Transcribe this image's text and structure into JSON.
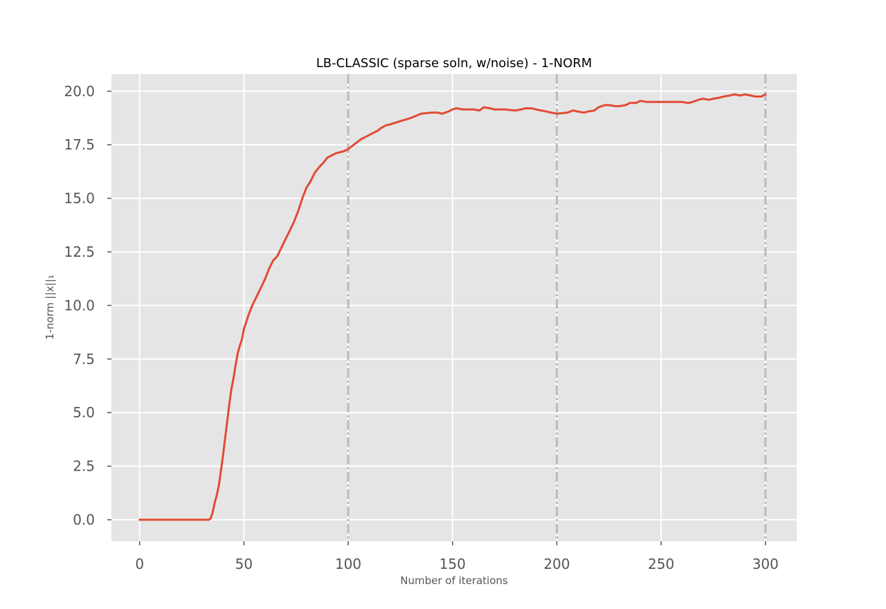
{
  "chart_data": {
    "type": "line",
    "title": "LB-CLASSIC (sparse soln, w/noise) - 1-NORM",
    "xlabel": "Number of iterations",
    "ylabel": "1-norm ||x||₁",
    "xlim": [
      -13.5,
      315
    ],
    "ylim": [
      -1,
      20.8
    ],
    "grid": true,
    "x_ticks": [
      0,
      50,
      100,
      150,
      200,
      250,
      300
    ],
    "x_tick_labels": [
      "0",
      "50",
      "100",
      "150",
      "200",
      "250",
      "300"
    ],
    "y_ticks": [
      0,
      2.5,
      5,
      7.5,
      10,
      12.5,
      15,
      17.5,
      20
    ],
    "y_tick_labels": [
      "0.0",
      "2.5",
      "5.0",
      "7.5",
      "10.0",
      "12.5",
      "15.0",
      "17.5",
      "20.0"
    ],
    "vertical_lines": [
      100,
      200,
      300
    ],
    "colors": {
      "line": "#E24A33",
      "background": "#E5E5E5",
      "grid": "#FFFFFF",
      "vline": "#BBBBBB"
    },
    "series": [
      {
        "x": [
          0,
          10,
          20,
          30,
          33,
          34,
          35,
          36,
          37,
          38,
          39,
          40,
          41,
          42,
          43,
          44,
          45,
          46,
          47,
          48,
          49,
          50,
          52,
          54,
          56,
          58,
          60,
          62,
          64,
          66,
          68,
          70,
          72,
          74,
          76,
          78,
          80,
          82,
          84,
          86,
          88,
          90,
          92,
          94,
          96,
          98,
          100,
          102,
          104,
          106,
          108,
          110,
          112,
          114,
          116,
          118,
          120,
          125,
          130,
          135,
          140,
          143,
          145,
          148,
          150,
          152,
          155,
          158,
          160,
          163,
          165,
          168,
          170,
          175,
          180,
          183,
          185,
          188,
          190,
          195,
          200,
          205,
          208,
          210,
          213,
          215,
          218,
          220,
          223,
          225,
          228,
          230,
          233,
          235,
          238,
          240,
          243,
          245,
          248,
          250,
          253,
          255,
          258,
          260,
          263,
          265,
          268,
          270,
          273,
          275,
          278,
          280,
          283,
          285,
          288,
          290,
          293,
          295,
          298,
          300
        ],
        "y": [
          0,
          0,
          0,
          0,
          0,
          0.05,
          0.35,
          0.8,
          1.15,
          1.6,
          2.3,
          3.0,
          3.8,
          4.6,
          5.4,
          6.1,
          6.6,
          7.2,
          7.75,
          8.1,
          8.4,
          8.9,
          9.5,
          10.0,
          10.4,
          10.8,
          11.2,
          11.7,
          12.1,
          12.3,
          12.7,
          13.1,
          13.5,
          13.9,
          14.4,
          15.0,
          15.5,
          15.8,
          16.2,
          16.45,
          16.65,
          16.9,
          17.0,
          17.1,
          17.15,
          17.2,
          17.3,
          17.45,
          17.6,
          17.75,
          17.85,
          17.95,
          18.05,
          18.15,
          18.3,
          18.4,
          18.45,
          18.6,
          18.75,
          18.95,
          19.0,
          19.0,
          18.95,
          19.05,
          19.15,
          19.2,
          19.15,
          19.15,
          19.15,
          19.1,
          19.25,
          19.2,
          19.15,
          19.15,
          19.1,
          19.15,
          19.2,
          19.2,
          19.15,
          19.05,
          18.95,
          19.0,
          19.1,
          19.05,
          19.0,
          19.05,
          19.1,
          19.25,
          19.35,
          19.35,
          19.3,
          19.3,
          19.35,
          19.45,
          19.45,
          19.55,
          19.5,
          19.5,
          19.5,
          19.5,
          19.5,
          19.5,
          19.5,
          19.5,
          19.45,
          19.5,
          19.6,
          19.65,
          19.6,
          19.65,
          19.7,
          19.75,
          19.8,
          19.85,
          19.8,
          19.85,
          19.8,
          19.75,
          19.75,
          19.85
        ]
      }
    ]
  }
}
